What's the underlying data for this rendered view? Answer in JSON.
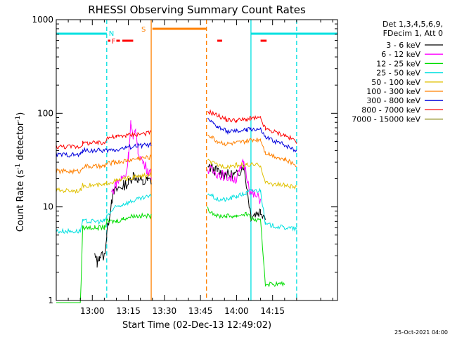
{
  "chart_data": {
    "type": "line",
    "title": "RHESSI Observing Summary Count Rates",
    "xlabel": "Start Time (02-Dec-13 12:49:02)",
    "ylabel_main": "Count Rate (s",
    "ylabel_sup1": "-1",
    "ylabel_mid": " detector",
    "ylabel_sup2": "-1",
    "ylabel_end": ")",
    "yscale": "log",
    "ylim": [
      1,
      1000
    ],
    "xlim_minutes": [
      -15,
      102
    ],
    "x_ticks": [
      {
        "label": "13:00",
        "m": 0
      },
      {
        "label": "13:15",
        "m": 15
      },
      {
        "label": "13:30",
        "m": 30
      },
      {
        "label": "13:45",
        "m": 45
      },
      {
        "label": "14:00",
        "m": 60
      },
      {
        "label": "14:15",
        "m": 75
      }
    ],
    "y_ticks": [
      {
        "label": "1",
        "v": 1
      },
      {
        "label": "10",
        "v": 10
      },
      {
        "label": "100",
        "v": 100
      },
      {
        "label": "1000",
        "v": 1000
      }
    ],
    "legend_header": [
      "Det 1,3,4,5,6,9,",
      "FDecim 1, Att 0"
    ],
    "footer": "25-Oct-2021 04:00",
    "markers": {
      "night_N": {
        "label": "N",
        "color": "#00e0e0"
      },
      "flare_F": {
        "label": "F",
        "color": "#ff0000"
      },
      "saa_S": {
        "label": "S",
        "color": "#ff8000"
      }
    },
    "bars": {
      "night": [
        [
          -15,
          6
        ],
        [
          66,
          102
        ]
      ],
      "saa": [
        [
          25,
          47.5
        ]
      ],
      "flare": [
        [
          10,
          11.5
        ],
        [
          12.5,
          17
        ],
        [
          52,
          54
        ],
        [
          70,
          72.5
        ]
      ],
      "flare_short": [
        [
          6.5,
          7.5
        ]
      ]
    },
    "vlines": [
      {
        "m": 6,
        "color": "#00e0e0",
        "style": "dashed"
      },
      {
        "m": 24.5,
        "color": "#ff8000",
        "style": "solid"
      },
      {
        "m": 47.5,
        "color": "#ff8000",
        "style": "dashed"
      },
      {
        "m": 66,
        "color": "#00e0e0",
        "style": "solid"
      },
      {
        "m": 85,
        "color": "#00e0e0",
        "style": "dashed"
      }
    ],
    "series": [
      {
        "name": "3 - 6 keV",
        "color": "#000000",
        "points": [
          [
            1,
            3
          ],
          [
            2,
            2.5
          ],
          [
            3,
            3
          ],
          [
            5,
            3
          ],
          [
            6,
            5
          ],
          [
            8,
            12
          ],
          [
            9,
            14
          ],
          [
            11,
            16
          ],
          [
            13,
            17
          ],
          [
            15,
            18
          ],
          [
            17,
            22
          ],
          [
            19,
            20
          ],
          [
            21,
            18
          ],
          [
            23,
            19
          ],
          [
            24.5,
            19
          ],
          [
            48,
            27
          ],
          [
            52,
            24
          ],
          [
            56,
            22
          ],
          [
            60,
            22
          ],
          [
            63,
            28
          ],
          [
            66,
            8
          ],
          [
            70,
            9
          ],
          [
            72,
            8
          ]
        ],
        "gaps": [
          [
            24.5,
            48
          ],
          [
            72,
            102
          ]
        ]
      },
      {
        "name": "6 - 12 keV",
        "color": "#ff00ff",
        "points": [
          [
            8,
            14
          ],
          [
            10,
            18
          ],
          [
            12,
            20
          ],
          [
            14,
            22
          ],
          [
            15,
            35
          ],
          [
            16,
            80
          ],
          [
            17,
            50
          ],
          [
            18,
            70
          ],
          [
            19,
            40
          ],
          [
            21,
            30
          ],
          [
            23,
            25
          ],
          [
            24.5,
            22
          ],
          [
            48,
            25
          ],
          [
            52,
            23
          ],
          [
            56,
            21
          ],
          [
            60,
            20
          ],
          [
            63,
            30
          ],
          [
            66,
            14
          ],
          [
            70,
            12
          ]
        ],
        "gaps": [
          [
            -15,
            8
          ],
          [
            24.5,
            48
          ],
          [
            70,
            102
          ]
        ]
      },
      {
        "name": "12 - 25 keV",
        "color": "#00dd00",
        "points": [
          [
            -15,
            0.8
          ],
          [
            -5,
            0.8
          ],
          [
            -4,
            6
          ],
          [
            1,
            6
          ],
          [
            5,
            6
          ],
          [
            6,
            7
          ],
          [
            10,
            7
          ],
          [
            13,
            7.5
          ],
          [
            17,
            8
          ],
          [
            20,
            8
          ],
          [
            24.5,
            8
          ],
          [
            48,
            9.5
          ],
          [
            52,
            8
          ],
          [
            56,
            8
          ],
          [
            60,
            8
          ],
          [
            64,
            8.5
          ],
          [
            66,
            7.5
          ],
          [
            70,
            7
          ],
          [
            72,
            1.5
          ],
          [
            80,
            1.5
          ]
        ],
        "gaps": [
          [
            24.5,
            48
          ],
          [
            80,
            102
          ]
        ]
      },
      {
        "name": "25 - 50 keV",
        "color": "#00e0e0",
        "points": [
          [
            -15,
            5.5
          ],
          [
            -5,
            5.5
          ],
          [
            -4,
            7
          ],
          [
            5,
            7
          ],
          [
            6,
            8
          ],
          [
            10,
            10
          ],
          [
            14,
            11
          ],
          [
            19,
            12
          ],
          [
            24.5,
            13
          ],
          [
            48,
            14
          ],
          [
            52,
            12
          ],
          [
            56,
            12
          ],
          [
            60,
            13
          ],
          [
            64,
            14
          ],
          [
            66,
            15
          ],
          [
            70,
            15
          ],
          [
            72,
            6.5
          ],
          [
            80,
            6
          ],
          [
            85,
            5.8
          ]
        ],
        "gaps": [
          [
            24.5,
            48
          ],
          [
            85,
            102
          ]
        ]
      },
      {
        "name": "50 - 100 keV",
        "color": "#e0c000",
        "points": [
          [
            -15,
            15
          ],
          [
            -5,
            15
          ],
          [
            -4,
            17
          ],
          [
            5,
            17
          ],
          [
            6,
            18
          ],
          [
            10,
            19
          ],
          [
            14,
            20
          ],
          [
            19,
            21
          ],
          [
            24.5,
            22
          ],
          [
            48,
            31
          ],
          [
            52,
            28
          ],
          [
            56,
            27
          ],
          [
            60,
            28
          ],
          [
            64,
            28
          ],
          [
            66,
            28
          ],
          [
            70,
            28
          ],
          [
            72,
            18
          ],
          [
            80,
            17
          ],
          [
            85,
            16
          ]
        ],
        "gaps": [
          [
            24.5,
            48
          ],
          [
            85,
            102
          ]
        ]
      },
      {
        "name": "100 - 300 keV",
        "color": "#ff8000",
        "points": [
          [
            -15,
            24
          ],
          [
            -5,
            24
          ],
          [
            -4,
            27
          ],
          [
            5,
            27
          ],
          [
            6,
            29
          ],
          [
            10,
            30
          ],
          [
            14,
            31
          ],
          [
            19,
            33
          ],
          [
            24.5,
            34
          ],
          [
            48,
            60
          ],
          [
            52,
            50
          ],
          [
            56,
            47
          ],
          [
            60,
            48
          ],
          [
            64,
            50
          ],
          [
            66,
            52
          ],
          [
            70,
            53
          ],
          [
            72,
            38
          ],
          [
            80,
            32
          ],
          [
            85,
            28
          ]
        ],
        "gaps": [
          [
            24.5,
            48
          ],
          [
            85,
            102
          ]
        ]
      },
      {
        "name": "300 - 800 keV",
        "color": "#0000dd",
        "points": [
          [
            -15,
            36
          ],
          [
            -5,
            36
          ],
          [
            -4,
            40
          ],
          [
            5,
            40
          ],
          [
            6,
            40
          ],
          [
            10,
            41
          ],
          [
            14,
            43
          ],
          [
            19,
            45
          ],
          [
            24.5,
            46
          ],
          [
            48,
            85
          ],
          [
            52,
            72
          ],
          [
            56,
            64
          ],
          [
            60,
            64
          ],
          [
            64,
            66
          ],
          [
            66,
            68
          ],
          [
            70,
            67
          ],
          [
            72,
            55
          ],
          [
            80,
            46
          ],
          [
            85,
            40
          ]
        ],
        "gaps": [
          [
            24.5,
            48
          ],
          [
            85,
            102
          ]
        ]
      },
      {
        "name": "800 - 7000 keV",
        "color": "#ff0000",
        "points": [
          [
            -15,
            44
          ],
          [
            -5,
            44
          ],
          [
            -4,
            48
          ],
          [
            5,
            48
          ],
          [
            6,
            55
          ],
          [
            10,
            56
          ],
          [
            14,
            58
          ],
          [
            19,
            60
          ],
          [
            24.5,
            62
          ],
          [
            48,
            105
          ],
          [
            52,
            95
          ],
          [
            56,
            85
          ],
          [
            60,
            84
          ],
          [
            64,
            86
          ],
          [
            66,
            88
          ],
          [
            70,
            88
          ],
          [
            72,
            68
          ],
          [
            80,
            58
          ],
          [
            85,
            50
          ]
        ],
        "gaps": [
          [
            24.5,
            48
          ],
          [
            85,
            102
          ]
        ]
      },
      {
        "name": "7000 - 15000 keV",
        "color": "#808000",
        "points": [],
        "gaps": []
      }
    ]
  }
}
